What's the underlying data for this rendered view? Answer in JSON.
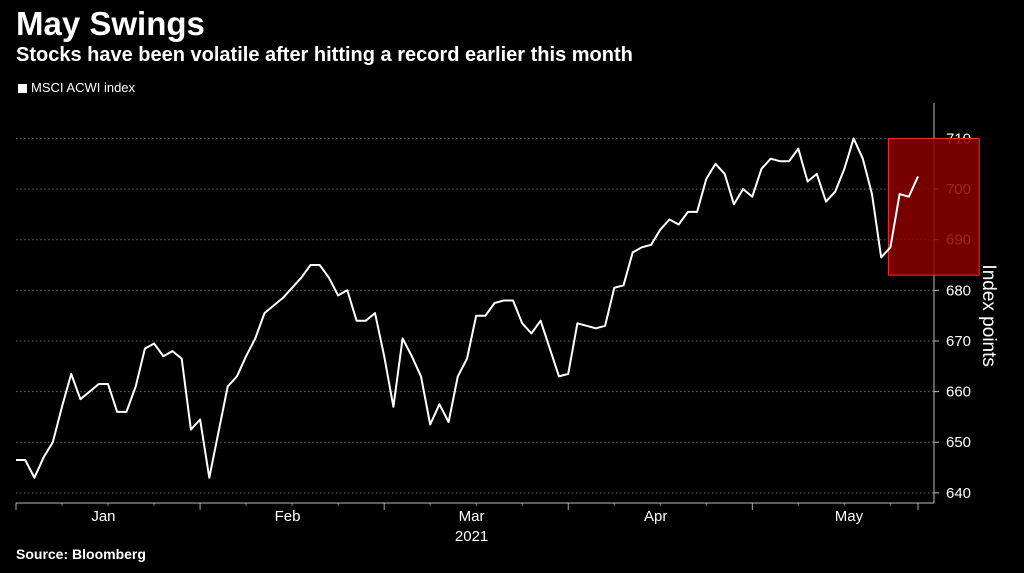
{
  "header": {
    "title": "May Swings",
    "subtitle": "Stocks have been volatile after hitting a record earlier this month"
  },
  "footer": {
    "source": "Source: Bloomberg"
  },
  "colors": {
    "background": "#000000",
    "line": "#ffffff",
    "highlight_fill": "#8b0000",
    "highlight_stroke": "#ff2a2a"
  },
  "chart_data": {
    "type": "line",
    "title": "May Swings",
    "subtitle": "Stocks have been volatile after hitting a record earlier this month",
    "ylabel": "Index points",
    "xlabel": "2021",
    "legend": {
      "entries": [
        "MSCI ACWI index"
      ],
      "position": "top-left"
    },
    "ylim": [
      638,
      717
    ],
    "yticks": [
      640,
      650,
      660,
      670,
      680,
      690,
      700,
      710
    ],
    "xticks": [
      "Jan",
      "Feb",
      "Mar",
      "Apr",
      "May"
    ],
    "grid": true,
    "highlight": {
      "from_index": 95,
      "to_index": 104,
      "ylim": [
        683,
        710
      ]
    },
    "series": [
      {
        "name": "MSCI ACWI index",
        "values": [
          646.5,
          646.5,
          643,
          647,
          650,
          657,
          663.5,
          658.5,
          660,
          661.5,
          661.5,
          656,
          656,
          661,
          668.5,
          669.5,
          667,
          668,
          666.5,
          652.5,
          654.5,
          643,
          652,
          661,
          663,
          667,
          670.5,
          675.5,
          677,
          678.5,
          680.5,
          682.5,
          685,
          685,
          682.5,
          679,
          680,
          674,
          674,
          675.5,
          667,
          657,
          670.5,
          667,
          663,
          653.5,
          657.5,
          654,
          663,
          666.5,
          675,
          675,
          677.5,
          678,
          678,
          673.5,
          671.5,
          674,
          668.5,
          663,
          663.5,
          673.5,
          673,
          672.5,
          673,
          680.5,
          681,
          687.5,
          688.5,
          689,
          692,
          694,
          693,
          695.5,
          695.5,
          702,
          705,
          703,
          697,
          700,
          698.5,
          704,
          706,
          705.5,
          705.5,
          708,
          701.5,
          703,
          697.5,
          699.5,
          704,
          710,
          706,
          699,
          686.5,
          688.5,
          699,
          698.5,
          702.5
        ]
      }
    ]
  }
}
